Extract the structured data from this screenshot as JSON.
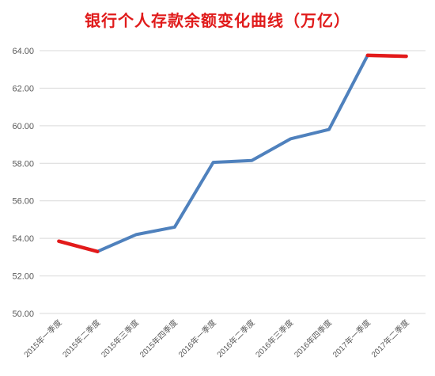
{
  "chart_data": {
    "type": "line",
    "title": "银行个人存款余额变化曲线（万亿）",
    "xlabel": "",
    "ylabel": "",
    "categories": [
      "2015年一季度",
      "2015年二季度",
      "2015年三季度",
      "2015年四季度",
      "2016年一季度",
      "2016年二季度",
      "2016年三季度",
      "2016年四季度",
      "2017年一季度",
      "2017年二季度"
    ],
    "series": [
      {
        "values": [
          53.85,
          53.3,
          54.2,
          54.6,
          58.05,
          58.15,
          59.3,
          59.8,
          63.75,
          63.7
        ],
        "color": "#4f81bd"
      }
    ],
    "highlight_segments": [
      {
        "from_index": 0,
        "to_index": 1,
        "color": "#e31a1a"
      },
      {
        "from_index": 8,
        "to_index": 9,
        "color": "#e31a1a"
      }
    ],
    "yticks": [
      "50.00",
      "52.00",
      "54.00",
      "56.00",
      "58.00",
      "60.00",
      "62.00",
      "64.00"
    ],
    "ylim": [
      50,
      64
    ],
    "grid": true,
    "legend": "none"
  }
}
